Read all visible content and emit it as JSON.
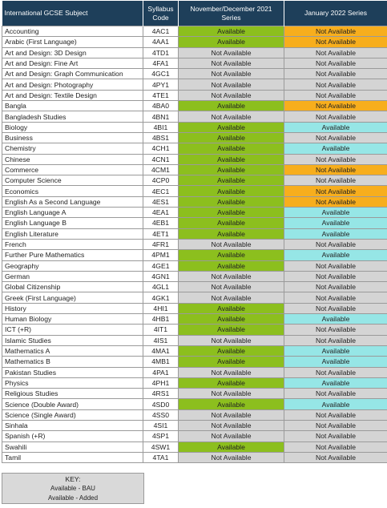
{
  "header": {
    "subject": "International GCSE Subject",
    "code_line1": "Syllabus",
    "code_line2": "Code",
    "nov_line1": "November/December 2021",
    "nov_line2": "Series",
    "jan": "January 2022 Series"
  },
  "colors": {
    "header_bg": "#1e3f5a",
    "available_added": "#8cbf1e",
    "available_bau": "#96e6e6",
    "not_available_withdrawn": "#f7ae1d",
    "not_available": "#d4d4d4"
  },
  "rows": [
    {
      "subject": "Accounting",
      "code": "4AC1",
      "nov": "Available",
      "nov_type": "added",
      "jan": "Not Available",
      "jan_type": "withdrawn"
    },
    {
      "subject": "Arabic (First Language)",
      "code": "4AA1",
      "nov": "Available",
      "nov_type": "added",
      "jan": "Not Available",
      "jan_type": "withdrawn"
    },
    {
      "subject": "Art and Design: 3D Design",
      "code": "4TD1",
      "nov": "Not Available",
      "nov_type": "na",
      "jan": "Not Available",
      "jan_type": "na"
    },
    {
      "subject": "Art and Design: Fine Art",
      "code": "4FA1",
      "nov": "Not Available",
      "nov_type": "na",
      "jan": "Not Available",
      "jan_type": "na"
    },
    {
      "subject": "Art and Design: Graph Communication",
      "code": "4GC1",
      "nov": "Not Available",
      "nov_type": "na",
      "jan": "Not Available",
      "jan_type": "na"
    },
    {
      "subject": "Art and Design: Photography",
      "code": "4PY1",
      "nov": "Not Available",
      "nov_type": "na",
      "jan": "Not Available",
      "jan_type": "na"
    },
    {
      "subject": "Art and Design: Textile Design",
      "code": "4TE1",
      "nov": "Not Available",
      "nov_type": "na",
      "jan": "Not Available",
      "jan_type": "na"
    },
    {
      "subject": "Bangla",
      "code": "4BA0",
      "nov": "Available",
      "nov_type": "added",
      "jan": "Not Available",
      "jan_type": "withdrawn"
    },
    {
      "subject": "Bangladesh Studies",
      "code": "4BN1",
      "nov": "Not Available",
      "nov_type": "na",
      "jan": "Not Available",
      "jan_type": "na"
    },
    {
      "subject": "Biology",
      "code": "4BI1",
      "nov": "Available",
      "nov_type": "added",
      "jan": "Available",
      "jan_type": "bau"
    },
    {
      "subject": "Business",
      "code": "4BS1",
      "nov": "Available",
      "nov_type": "added",
      "jan": "Not Available",
      "jan_type": "na"
    },
    {
      "subject": "Chemistry",
      "code": "4CH1",
      "nov": "Available",
      "nov_type": "added",
      "jan": "Available",
      "jan_type": "bau"
    },
    {
      "subject": "Chinese",
      "code": "4CN1",
      "nov": "Available",
      "nov_type": "added",
      "jan": "Not Available",
      "jan_type": "na"
    },
    {
      "subject": "Commerce",
      "code": "4CM1",
      "nov": "Available",
      "nov_type": "added",
      "jan": "Not Available",
      "jan_type": "withdrawn"
    },
    {
      "subject": "Computer Science",
      "code": "4CP0",
      "nov": "Available",
      "nov_type": "added",
      "jan": "Not Available",
      "jan_type": "na"
    },
    {
      "subject": "Economics",
      "code": "4EC1",
      "nov": "Available",
      "nov_type": "added",
      "jan": "Not Available",
      "jan_type": "withdrawn"
    },
    {
      "subject": "English As a Second Language",
      "code": "4ES1",
      "nov": "Available",
      "nov_type": "added",
      "jan": "Not Available",
      "jan_type": "withdrawn"
    },
    {
      "subject": "English Language A",
      "code": "4EA1",
      "nov": "Available",
      "nov_type": "added",
      "jan": "Available",
      "jan_type": "bau"
    },
    {
      "subject": "English Language B",
      "code": "4EB1",
      "nov": "Available",
      "nov_type": "added",
      "jan": "Available",
      "jan_type": "bau"
    },
    {
      "subject": "English Literature",
      "code": "4ET1",
      "nov": "Available",
      "nov_type": "added",
      "jan": "Available",
      "jan_type": "bau"
    },
    {
      "subject": "French",
      "code": "4FR1",
      "nov": "Not Available",
      "nov_type": "na",
      "jan": "Not Available",
      "jan_type": "na"
    },
    {
      "subject": "Further Pure Mathematics",
      "code": "4PM1",
      "nov": "Available",
      "nov_type": "added",
      "jan": "Available",
      "jan_type": "bau"
    },
    {
      "subject": "Geography",
      "code": "4GE1",
      "nov": "Available",
      "nov_type": "added",
      "jan": "Not Available",
      "jan_type": "na"
    },
    {
      "subject": "German",
      "code": "4GN1",
      "nov": "Not Available",
      "nov_type": "na",
      "jan": "Not Available",
      "jan_type": "na"
    },
    {
      "subject": "Global Citizenship",
      "code": "4GL1",
      "nov": "Not Available",
      "nov_type": "na",
      "jan": "Not Available",
      "jan_type": "na"
    },
    {
      "subject": "Greek (First Language)",
      "code": "4GK1",
      "nov": "Not Available",
      "nov_type": "na",
      "jan": "Not Available",
      "jan_type": "na"
    },
    {
      "subject": "History",
      "code": "4HI1",
      "nov": "Available",
      "nov_type": "added",
      "jan": "Not Available",
      "jan_type": "na"
    },
    {
      "subject": "Human Biology",
      "code": "4HB1",
      "nov": "Available",
      "nov_type": "added",
      "jan": "Available",
      "jan_type": "bau"
    },
    {
      "subject": "ICT (+R)",
      "code": "4IT1",
      "nov": "Available",
      "nov_type": "added",
      "jan": "Not Available",
      "jan_type": "na"
    },
    {
      "subject": "Islamic Studies",
      "code": "4IS1",
      "nov": "Not Available",
      "nov_type": "na",
      "jan": "Not Available",
      "jan_type": "na"
    },
    {
      "subject": "Mathematics A",
      "code": "4MA1",
      "nov": "Available",
      "nov_type": "added",
      "jan": "Available",
      "jan_type": "bau"
    },
    {
      "subject": "Mathematics B",
      "code": "4MB1",
      "nov": "Available",
      "nov_type": "added",
      "jan": "Available",
      "jan_type": "bau"
    },
    {
      "subject": "Pakistan Studies",
      "code": "4PA1",
      "nov": "Not Available",
      "nov_type": "na",
      "jan": "Not Available",
      "jan_type": "na"
    },
    {
      "subject": "Physics",
      "code": "4PH1",
      "nov": "Available",
      "nov_type": "added",
      "jan": "Available",
      "jan_type": "bau"
    },
    {
      "subject": "Religious Studies",
      "code": "4RS1",
      "nov": "Not Available",
      "nov_type": "na",
      "jan": "Not Available",
      "jan_type": "na"
    },
    {
      "subject": "Science (Double Award)",
      "code": "4SD0",
      "nov": "Available",
      "nov_type": "added",
      "jan": "Available",
      "jan_type": "bau"
    },
    {
      "subject": "Science (Single Award)",
      "code": "4SS0",
      "nov": "Not Available",
      "nov_type": "na",
      "jan": "Not Available",
      "jan_type": "na"
    },
    {
      "subject": "Sinhala",
      "code": "4SI1",
      "nov": "Not Available",
      "nov_type": "na",
      "jan": "Not Available",
      "jan_type": "na"
    },
    {
      "subject": "Spanish (+R)",
      "code": "4SP1",
      "nov": "Not Available",
      "nov_type": "na",
      "jan": "Not Available",
      "jan_type": "na"
    },
    {
      "subject": "Swahili",
      "code": "4SW1",
      "nov": "Available",
      "nov_type": "added",
      "jan": "Not Available",
      "jan_type": "na"
    },
    {
      "subject": "Tamil",
      "code": "4TA1",
      "nov": "Not Available",
      "nov_type": "na",
      "jan": "Not Available",
      "jan_type": "na"
    }
  ],
  "key": {
    "title": "KEY:",
    "items": [
      {
        "label": "Available - BAU",
        "type": "bau"
      },
      {
        "label": "Available - Added",
        "type": "added"
      }
    ]
  }
}
